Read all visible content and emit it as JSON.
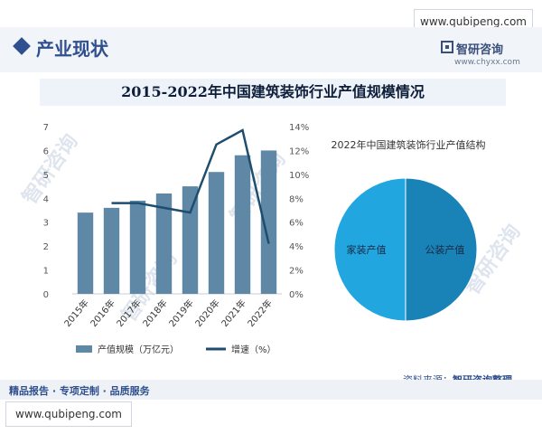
{
  "page": {
    "section_title": "产业现状",
    "top_url": "www.qubipeng.com",
    "bottom_url": "www.qubipeng.com",
    "brand_name": "智研咨询",
    "brand_url": "www.chyxx.com",
    "footer_text": "精品报告 · 专项定制 · 品质服务",
    "source_label": "资料来源：",
    "source_value": "智研咨询整理",
    "watermark_text": "智研咨询"
  },
  "colors": {
    "bar": "#5f88a6",
    "line": "#1e4d6e",
    "pie_left": "#21a6e0",
    "pie_right": "#1982b6",
    "accent": "#2f4f8f"
  },
  "chart_data": [
    {
      "type": "bar",
      "title": "2015-2022年中国建筑装饰行业产值规模情况",
      "categories": [
        "2015年",
        "2016年",
        "2017年",
        "2018年",
        "2019年",
        "2020年",
        "2021年",
        "2022年"
      ],
      "series": [
        {
          "name": "产值规模（万亿元）",
          "type": "bar",
          "axis": "left",
          "values": [
            3.4,
            3.6,
            3.9,
            4.2,
            4.5,
            5.1,
            5.8,
            6.0
          ]
        },
        {
          "name": "增速（%）",
          "type": "line",
          "axis": "right",
          "values": [
            null,
            7.6,
            7.6,
            7.2,
            6.8,
            12.5,
            13.7,
            4.2
          ]
        }
      ],
      "y_left": {
        "min": 0,
        "max": 7,
        "ticks": [
          "0",
          "1",
          "2",
          "3",
          "4",
          "5",
          "6",
          "7"
        ]
      },
      "y_right": {
        "min": 0,
        "max": 14,
        "ticks": [
          "0%",
          "2%",
          "4%",
          "6%",
          "8%",
          "10%",
          "12%",
          "14%"
        ]
      },
      "grid": false,
      "legend_position": "bottom"
    },
    {
      "type": "pie",
      "title": "2022年中国建筑装饰行业产值结构",
      "labels": [
        "家装产值",
        "公装产值"
      ],
      "values": [
        50,
        50
      ]
    }
  ]
}
